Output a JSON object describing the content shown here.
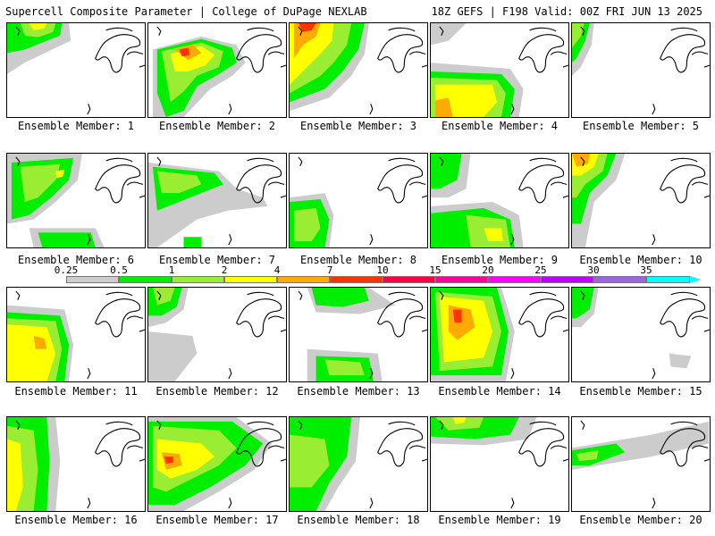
{
  "header": {
    "title": "Supercell Composite Parameter | College of DuPage NEXLAB",
    "valid": "18Z GEFS | F198 Valid: 00Z FRI JUN 13 2025"
  },
  "colorbar": {
    "ticks": [
      "0.25",
      "0.5",
      "1",
      "2",
      "4",
      "7",
      "10",
      "15",
      "20",
      "25",
      "30",
      "35"
    ],
    "colors": [
      "#cccccc",
      "#00ee00",
      "#99ee33",
      "#ffff00",
      "#ffaa00",
      "#ff3300",
      "#ff0044",
      "#ff0099",
      "#ff00ff",
      "#bb00ff",
      "#9966dd",
      "#00ffff"
    ]
  },
  "members": [
    {
      "label": "Ensemble Member: 1"
    },
    {
      "label": "Ensemble Member: 2"
    },
    {
      "label": "Ensemble Member: 3"
    },
    {
      "label": "Ensemble Member: 4"
    },
    {
      "label": "Ensemble Member: 5"
    },
    {
      "label": "Ensemble Member: 6"
    },
    {
      "label": "Ensemble Member: 7"
    },
    {
      "label": "Ensemble Member: 8"
    },
    {
      "label": "Ensemble Member: 9"
    },
    {
      "label": "Ensemble Member: 10"
    },
    {
      "label": "Ensemble Member: 11"
    },
    {
      "label": "Ensemble Member: 12"
    },
    {
      "label": "Ensemble Member: 13"
    },
    {
      "label": "Ensemble Member: 14"
    },
    {
      "label": "Ensemble Member: 15"
    },
    {
      "label": "Ensemble Member: 16"
    },
    {
      "label": "Ensemble Member: 17"
    },
    {
      "label": "Ensemble Member: 18"
    },
    {
      "label": "Ensemble Member: 19"
    },
    {
      "label": "Ensemble Member: 20"
    }
  ]
}
